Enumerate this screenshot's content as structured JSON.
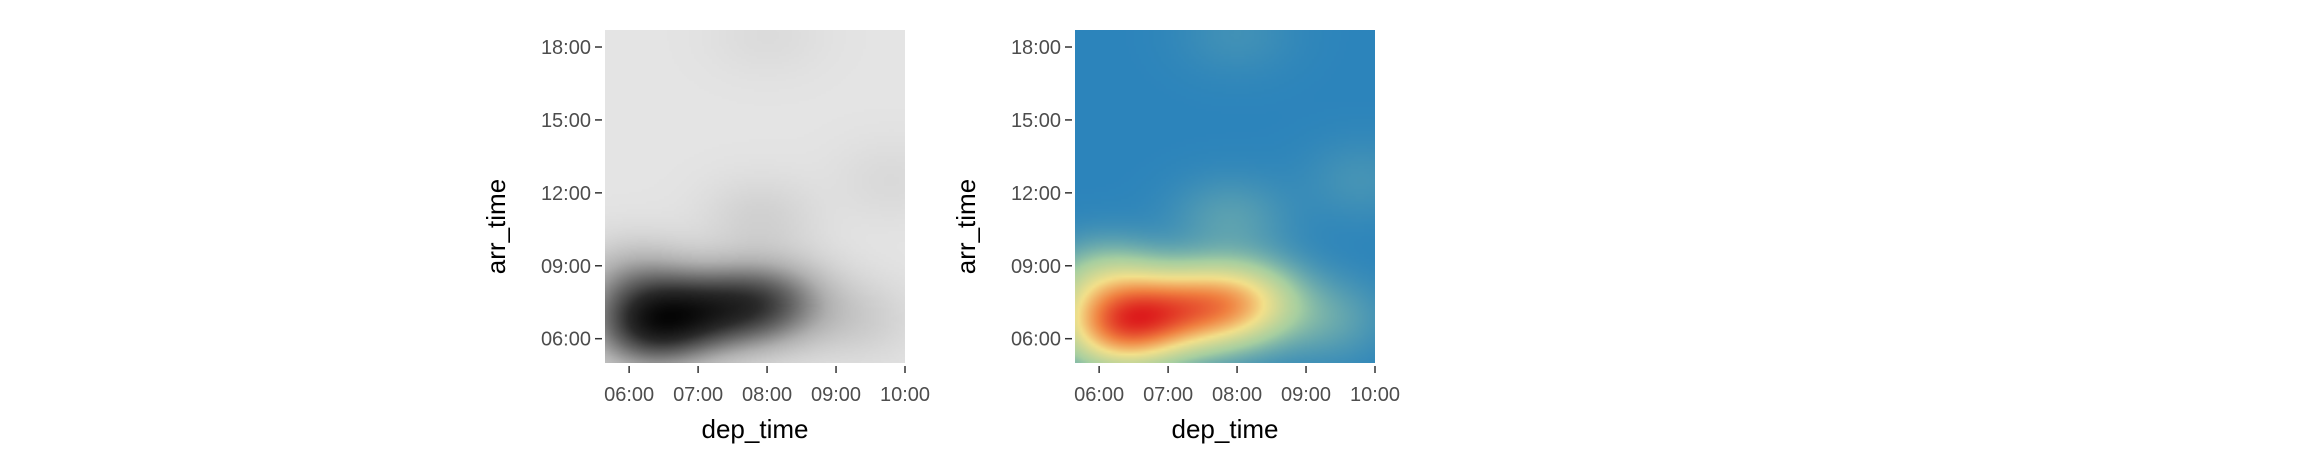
{
  "chart_data": [
    {
      "type": "heatmap",
      "title": "",
      "xlabel": "dep_time",
      "ylabel": "arr_time",
      "x_ticks": [
        "06:00",
        "07:00",
        "08:00",
        "09:00",
        "10:00"
      ],
      "y_ticks": [
        "06:00",
        "09:00",
        "12:00",
        "15:00",
        "18:00"
      ],
      "x_tick_hours": [
        6,
        7,
        8,
        9,
        10
      ],
      "y_tick_hours": [
        6,
        9,
        12,
        15,
        18
      ],
      "xlim_hours": [
        5.65,
        10.0
      ],
      "ylim_hours": [
        5.0,
        18.7
      ],
      "palette": "greys",
      "palette_colors": [
        "#e4e4e4",
        "#b0b0b0",
        "#6a6a6a",
        "#2a2a2a",
        "#050505"
      ],
      "density_peaks": [
        {
          "x_hour": 6.3,
          "y_hour": 6.5,
          "weight": 1.0
        },
        {
          "x_hour": 6.9,
          "y_hour": 7.1,
          "weight": 0.7
        },
        {
          "x_hour": 7.6,
          "y_hour": 7.3,
          "weight": 0.65
        },
        {
          "x_hour": 8.15,
          "y_hour": 7.5,
          "weight": 0.5
        },
        {
          "x_hour": 6.1,
          "y_hour": 8.2,
          "weight": 0.4
        },
        {
          "x_hour": 7.9,
          "y_hour": 10.9,
          "weight": 0.1
        },
        {
          "x_hour": 9.8,
          "y_hour": 12.5,
          "weight": 0.05
        },
        {
          "x_hour": 9.3,
          "y_hour": 6.8,
          "weight": 0.12
        },
        {
          "x_hour": 8.0,
          "y_hour": 18.5,
          "weight": 0.04
        }
      ]
    },
    {
      "type": "heatmap",
      "title": "",
      "xlabel": "dep_time",
      "ylabel": "arr_time",
      "x_ticks": [
        "06:00",
        "07:00",
        "08:00",
        "09:00",
        "10:00"
      ],
      "y_ticks": [
        "06:00",
        "09:00",
        "12:00",
        "15:00",
        "18:00"
      ],
      "x_tick_hours": [
        6,
        7,
        8,
        9,
        10
      ],
      "y_tick_hours": [
        6,
        9,
        12,
        15,
        18
      ],
      "xlim_hours": [
        5.65,
        10.0
      ],
      "ylim_hours": [
        5.0,
        18.7
      ],
      "palette": "spectral-reversed",
      "palette_colors": [
        "#2c84bb",
        "#a7cfa0",
        "#f3e08a",
        "#f08040",
        "#dd1c1c"
      ],
      "density_peaks": [
        {
          "x_hour": 6.3,
          "y_hour": 6.5,
          "weight": 1.0
        },
        {
          "x_hour": 6.9,
          "y_hour": 7.1,
          "weight": 0.7
        },
        {
          "x_hour": 7.6,
          "y_hour": 7.3,
          "weight": 0.65
        },
        {
          "x_hour": 8.15,
          "y_hour": 7.5,
          "weight": 0.5
        },
        {
          "x_hour": 6.1,
          "y_hour": 8.2,
          "weight": 0.4
        },
        {
          "x_hour": 7.9,
          "y_hour": 10.9,
          "weight": 0.1
        },
        {
          "x_hour": 9.8,
          "y_hour": 12.5,
          "weight": 0.05
        },
        {
          "x_hour": 9.3,
          "y_hour": 6.8,
          "weight": 0.12
        },
        {
          "x_hour": 8.0,
          "y_hour": 18.5,
          "weight": 0.04
        }
      ]
    }
  ]
}
